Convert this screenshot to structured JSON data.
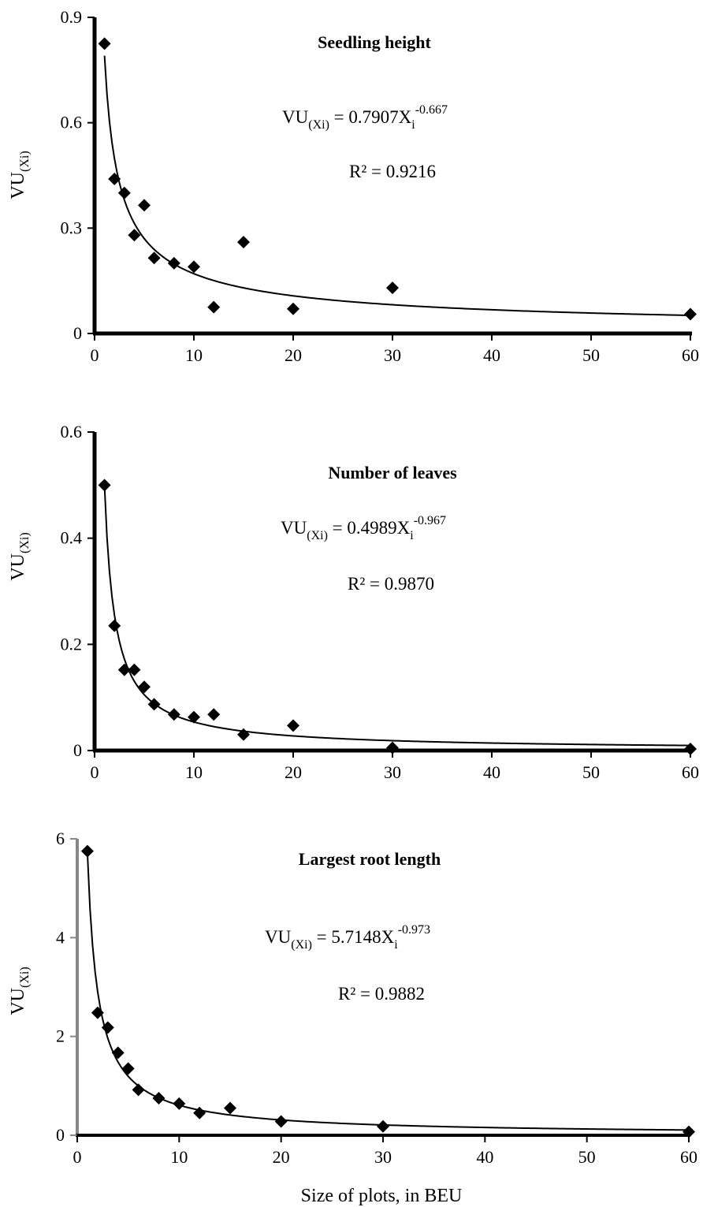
{
  "figure": {
    "xlabel": "Size of plots, in BEU"
  },
  "chart_data": [
    {
      "type": "scatter",
      "title": "Seedling height",
      "ylabel_main": "VU",
      "ylabel_sub": "(Xi)",
      "equation": {
        "prefix": "VU",
        "prefix_sub": "(Xi)",
        "middle": " = 0.7907X",
        "var_sub": "i",
        "exponent": "-0.667"
      },
      "r2_label": "R² = 0.9216",
      "xlim": [
        0,
        60
      ],
      "ylim": [
        0,
        0.9
      ],
      "x_ticks": [
        "0",
        "10",
        "20",
        "30",
        "40",
        "50",
        "60"
      ],
      "y_ticks": [
        "0",
        "0.3",
        "0.6",
        "0.9"
      ],
      "y_tick_values": [
        0,
        0.3,
        0.6,
        0.9
      ],
      "x_tick_values": [
        0,
        10,
        20,
        30,
        40,
        50,
        60
      ],
      "axis_color": "#000000",
      "points": [
        {
          "x": 1,
          "y": 0.825
        },
        {
          "x": 2,
          "y": 0.44
        },
        {
          "x": 3,
          "y": 0.4
        },
        {
          "x": 4,
          "y": 0.28
        },
        {
          "x": 5,
          "y": 0.365
        },
        {
          "x": 6,
          "y": 0.215
        },
        {
          "x": 8,
          "y": 0.2
        },
        {
          "x": 10,
          "y": 0.19
        },
        {
          "x": 12,
          "y": 0.075
        },
        {
          "x": 15,
          "y": 0.26
        },
        {
          "x": 20,
          "y": 0.07
        },
        {
          "x": 30,
          "y": 0.13
        },
        {
          "x": 60,
          "y": 0.055
        }
      ],
      "trend": {
        "a": 0.7907,
        "b": -0.667
      }
    },
    {
      "type": "scatter",
      "title": "Number of leaves",
      "ylabel_main": "VU",
      "ylabel_sub": "(Xi)",
      "equation": {
        "prefix": "VU",
        "prefix_sub": "(Xi)",
        "middle": " = 0.4989X",
        "var_sub": "i",
        "exponent": "-0.967"
      },
      "r2_label": "R² = 0.9870",
      "xlim": [
        0,
        60
      ],
      "ylim": [
        0,
        0.6
      ],
      "x_ticks": [
        "0",
        "10",
        "20",
        "30",
        "40",
        "50",
        "60"
      ],
      "y_ticks": [
        "0",
        "0.2",
        "0.4",
        "0.6"
      ],
      "y_tick_values": [
        0,
        0.2,
        0.4,
        0.6
      ],
      "x_tick_values": [
        0,
        10,
        20,
        30,
        40,
        50,
        60
      ],
      "axis_color": "#000000",
      "points": [
        {
          "x": 1,
          "y": 0.5
        },
        {
          "x": 2,
          "y": 0.235
        },
        {
          "x": 3,
          "y": 0.152
        },
        {
          "x": 4,
          "y": 0.152
        },
        {
          "x": 5,
          "y": 0.12
        },
        {
          "x": 6,
          "y": 0.087
        },
        {
          "x": 8,
          "y": 0.068
        },
        {
          "x": 10,
          "y": 0.063
        },
        {
          "x": 12,
          "y": 0.068
        },
        {
          "x": 15,
          "y": 0.03
        },
        {
          "x": 20,
          "y": 0.047
        },
        {
          "x": 30,
          "y": 0.005
        },
        {
          "x": 60,
          "y": 0.003
        }
      ],
      "trend": {
        "a": 0.4989,
        "b": -0.967
      }
    },
    {
      "type": "scatter",
      "title": "Largest root length",
      "ylabel_main": "VU",
      "ylabel_sub": "(Xi)",
      "equation": {
        "prefix": "VU",
        "prefix_sub": "(Xi)",
        "middle": " = 5.7148X",
        "var_sub": "i",
        "exponent": "-0.973"
      },
      "r2_label": "R² = 0.9882",
      "xlim": [
        0,
        60
      ],
      "ylim": [
        0,
        6
      ],
      "x_ticks": [
        "0",
        "10",
        "20",
        "30",
        "40",
        "50",
        "60"
      ],
      "y_ticks": [
        "0",
        "2",
        "4",
        "6"
      ],
      "y_tick_values": [
        0,
        2,
        4,
        6
      ],
      "x_tick_values": [
        0,
        10,
        20,
        30,
        40,
        50,
        60
      ],
      "axis_color": "#888888",
      "points": [
        {
          "x": 1,
          "y": 5.75
        },
        {
          "x": 2,
          "y": 2.48
        },
        {
          "x": 3,
          "y": 2.18
        },
        {
          "x": 4,
          "y": 1.67
        },
        {
          "x": 5,
          "y": 1.35
        },
        {
          "x": 6,
          "y": 0.92
        },
        {
          "x": 8,
          "y": 0.75
        },
        {
          "x": 10,
          "y": 0.64
        },
        {
          "x": 12,
          "y": 0.45
        },
        {
          "x": 15,
          "y": 0.55
        },
        {
          "x": 20,
          "y": 0.28
        },
        {
          "x": 30,
          "y": 0.18
        },
        {
          "x": 60,
          "y": 0.07
        }
      ],
      "trend": {
        "a": 5.7148,
        "b": -0.973
      }
    }
  ]
}
